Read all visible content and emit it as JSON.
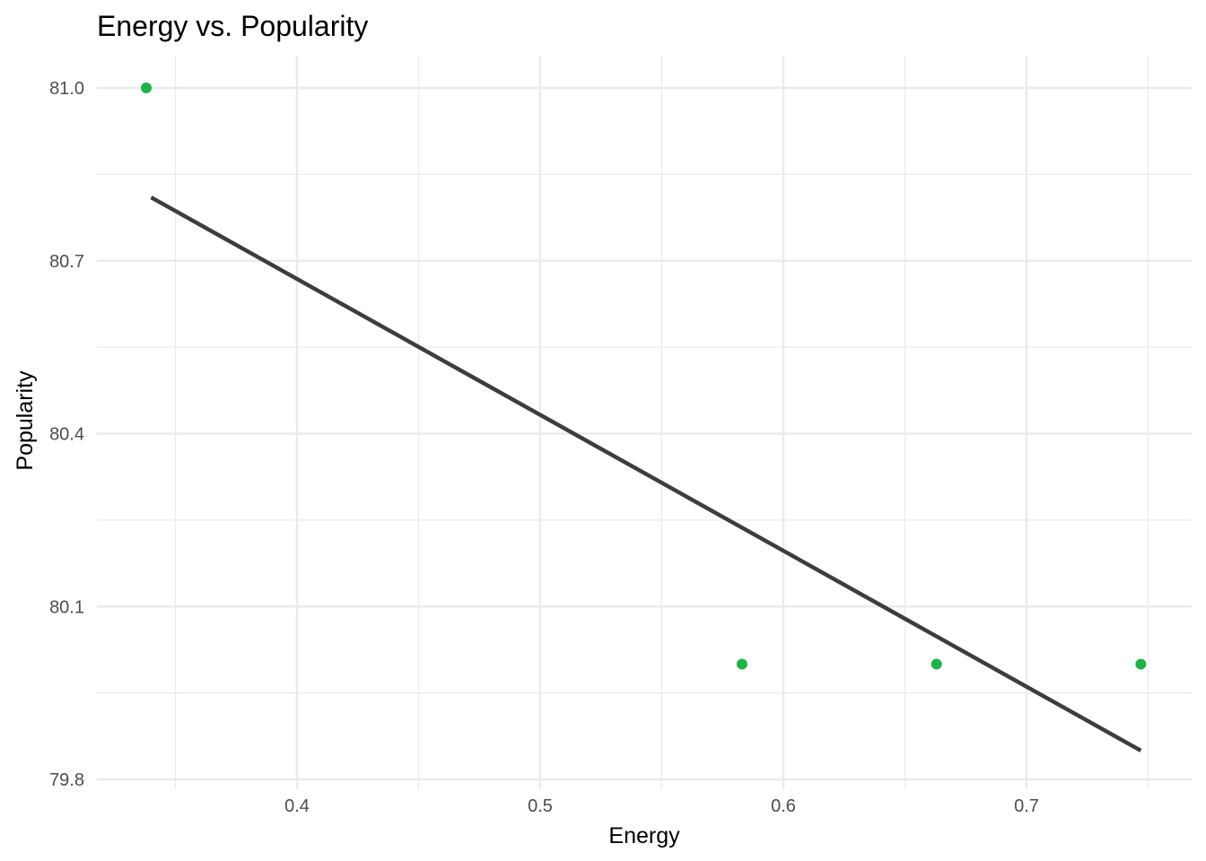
{
  "chart_data": {
    "type": "scatter",
    "title": "Energy vs. Popularity",
    "xlabel": "Energy",
    "ylabel": "Popularity",
    "xlim": [
      0.32,
      0.75
    ],
    "ylim": [
      79.8,
      81.055
    ],
    "x_ticks": [
      0.4,
      0.5,
      0.6,
      0.7
    ],
    "x_tick_labels": [
      "0.4",
      "0.5",
      "0.6",
      "0.7"
    ],
    "y_ticks": [
      79.8,
      80.1,
      80.4,
      80.7,
      81.0
    ],
    "y_tick_labels": [
      "79.8",
      "80.1",
      "80.4",
      "80.7",
      "81.0"
    ],
    "grid": true,
    "legend": "none",
    "point_color": "#1db345",
    "line_color": "#3d3d3d",
    "grid_color": "#ebebeb",
    "points": [
      {
        "x": 0.338,
        "y": 81.0
      },
      {
        "x": 0.583,
        "y": 80.0
      },
      {
        "x": 0.663,
        "y": 80.0
      },
      {
        "x": 0.747,
        "y": 80.0
      }
    ],
    "trend_line": {
      "x": [
        0.34,
        0.747
      ],
      "y": [
        80.81,
        79.85
      ]
    }
  }
}
